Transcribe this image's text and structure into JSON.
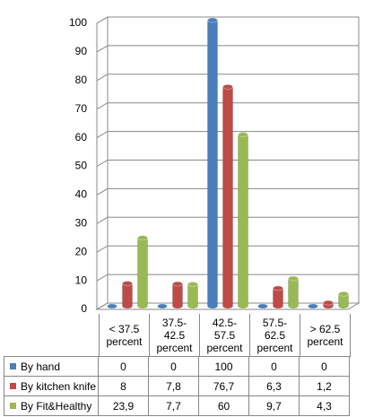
{
  "chart_data": {
    "type": "bar",
    "categories": [
      "< 37.5 percent",
      "37.5-42.5 percent",
      "42.5-57.5 percent",
      "57.5-62.5 percent",
      "> 62.5 percent"
    ],
    "series": [
      {
        "name": "By hand",
        "color": "#4a7ebb",
        "values": [
          0,
          0,
          100,
          0,
          0
        ]
      },
      {
        "name": "By kitchen knife",
        "color": "#be4b48",
        "values": [
          8,
          7.8,
          76.7,
          6.3,
          1.2
        ],
        "value_labels": [
          "8",
          "7,8",
          "76,7",
          "6,3",
          "1,2"
        ]
      },
      {
        "name": "By Fit&Healthy",
        "color": "#98b954",
        "values": [
          23.9,
          7.7,
          60,
          9.7,
          4.3
        ],
        "value_labels": [
          "23,9",
          "7,7",
          "60",
          "9,7",
          "4,3"
        ]
      }
    ],
    "ylim": [
      0,
      100
    ],
    "yticks": [
      0,
      10,
      20,
      30,
      40,
      50,
      60,
      70,
      80,
      90,
      100
    ],
    "grid": true
  }
}
